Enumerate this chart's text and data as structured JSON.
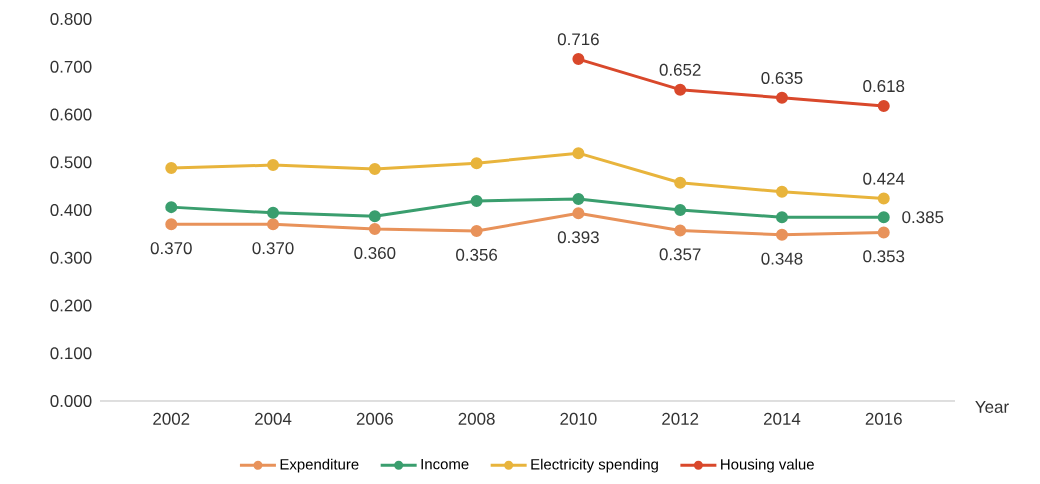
{
  "chart_data": {
    "type": "line",
    "xlabel": "Year",
    "categories": [
      "2002",
      "2004",
      "2006",
      "2008",
      "2010",
      "2012",
      "2014",
      "2016"
    ],
    "ylim": [
      0,
      0.8
    ],
    "yticks": [
      {
        "value": 0,
        "label": "0.000"
      },
      {
        "value": 0.1,
        "label": "0.100"
      },
      {
        "value": 0.2,
        "label": "0.200"
      },
      {
        "value": 0.3,
        "label": "0.300"
      },
      {
        "value": 0.4,
        "label": "0.400"
      },
      {
        "value": 0.5,
        "label": "0.500"
      },
      {
        "value": 0.6,
        "label": "0.600"
      },
      {
        "value": 0.7,
        "label": "0.700"
      },
      {
        "value": 0.8,
        "label": "0.800"
      }
    ],
    "grid": false,
    "legend": "bottom",
    "marker": "circle",
    "line_style": "solid",
    "series": [
      {
        "name": "Expenditure",
        "color": "#e8925a",
        "values": [
          0.37,
          0.37,
          0.36,
          0.356,
          0.393,
          0.357,
          0.348,
          0.353
        ],
        "value_labels": [
          "0.370",
          "0.370",
          "0.360",
          "0.356",
          "0.393",
          "0.357",
          "0.348",
          "0.353"
        ]
      },
      {
        "name": "Income",
        "color": "#3a9e6e",
        "values": [
          0.406,
          0.394,
          0.387,
          0.419,
          0.423,
          0.4,
          0.385,
          0.385
        ],
        "value_labels": [
          null,
          null,
          null,
          null,
          null,
          null,
          null,
          "0.385"
        ]
      },
      {
        "name": "Electricity spending",
        "color": "#e8b43c",
        "values": [
          0.488,
          0.494,
          0.486,
          0.498,
          0.519,
          0.457,
          0.438,
          0.424
        ],
        "value_labels": [
          null,
          null,
          null,
          null,
          null,
          null,
          null,
          "0.424"
        ]
      },
      {
        "name": "Housing value",
        "color": "#d9482b",
        "values": [
          null,
          null,
          null,
          null,
          0.716,
          0.652,
          0.635,
          0.618
        ],
        "value_labels": [
          null,
          null,
          null,
          null,
          "0.716",
          "0.652",
          "0.635",
          "0.618"
        ]
      }
    ]
  }
}
